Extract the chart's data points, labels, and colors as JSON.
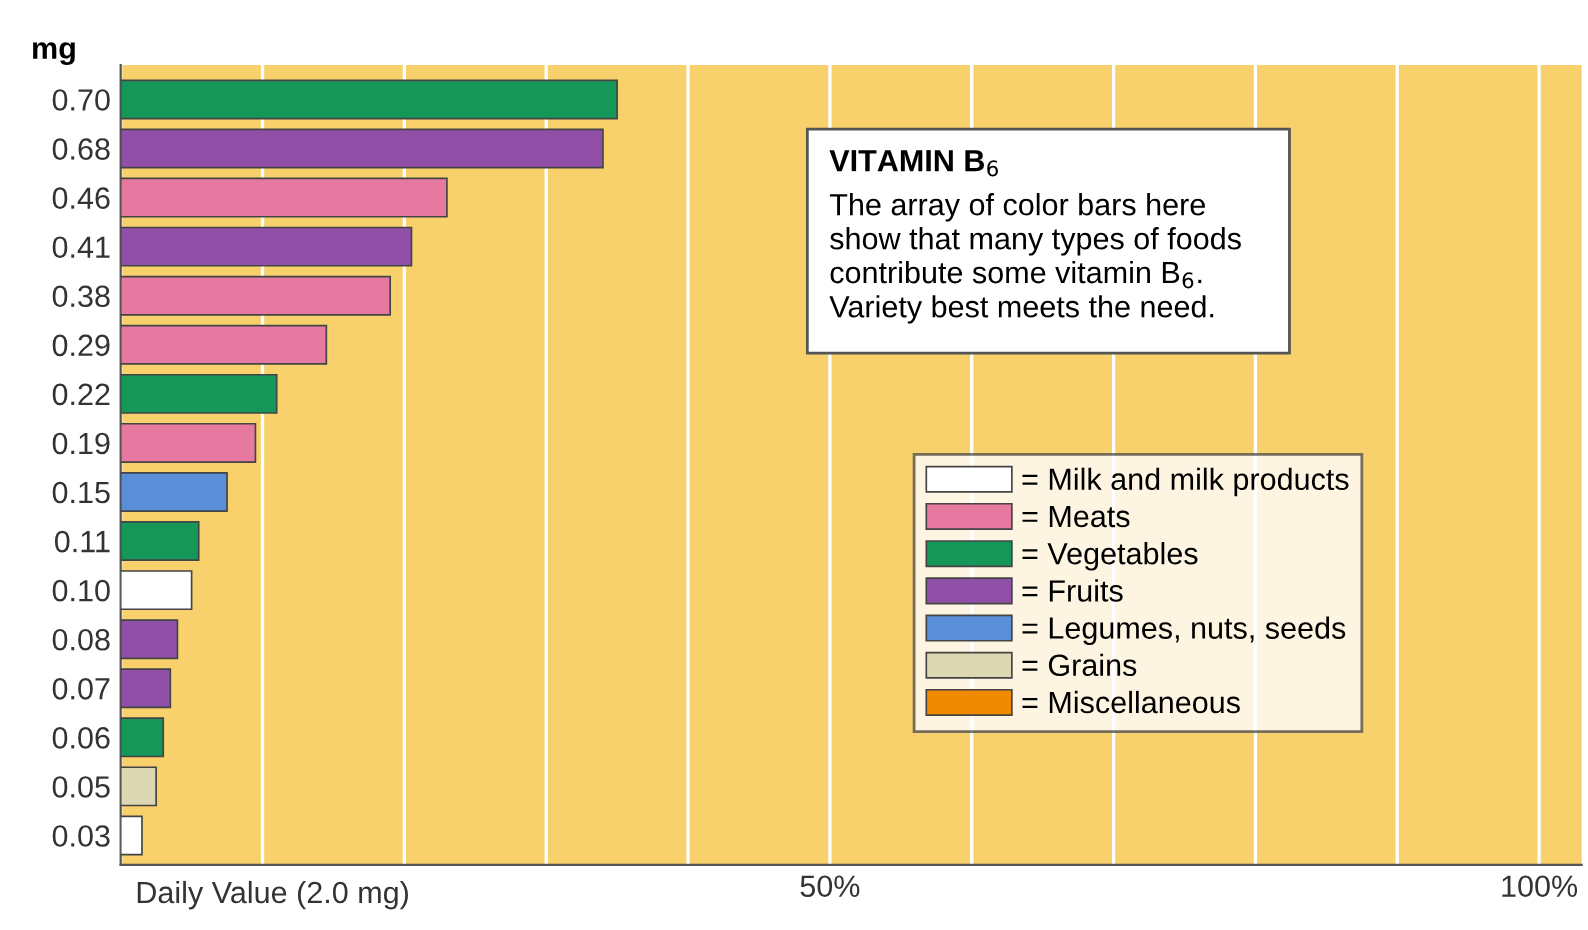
{
  "chart_data": {
    "type": "bar",
    "orientation": "horizontal",
    "ylabel": "mg",
    "xlabel": "Daily Value (2.0 mg)",
    "categories": [
      "0.70",
      "0.68",
      "0.46",
      "0.41",
      "0.38",
      "0.29",
      "0.22",
      "0.19",
      "0.15",
      "0.11",
      "0.10",
      "0.08",
      "0.07",
      "0.06",
      "0.05",
      "0.03"
    ],
    "series": [
      {
        "name": "= Milk and milk products",
        "color": "#ffffff",
        "values": [
          null,
          null,
          null,
          null,
          null,
          null,
          null,
          null,
          null,
          null,
          5,
          null,
          null,
          null,
          null,
          1.5
        ]
      },
      {
        "name": "= Meats",
        "color": "#e6799f",
        "values": [
          null,
          null,
          23,
          null,
          19,
          14.5,
          null,
          9.5,
          null,
          null,
          null,
          null,
          null,
          null,
          null,
          null
        ]
      },
      {
        "name": "= Vegetables",
        "color": "#15975a",
        "values": [
          35,
          null,
          null,
          null,
          null,
          null,
          11,
          null,
          null,
          5.5,
          null,
          null,
          null,
          3,
          null,
          null
        ]
      },
      {
        "name": "= Fruits",
        "color": "#9050a8",
        "values": [
          null,
          34,
          null,
          20.5,
          null,
          null,
          null,
          null,
          null,
          null,
          null,
          4,
          3.5,
          null,
          null,
          null
        ]
      },
      {
        "name": "= Legumes, nuts, seeds",
        "color": "#5b8ed8",
        "values": [
          null,
          null,
          null,
          null,
          null,
          null,
          null,
          null,
          7.5,
          null,
          null,
          null,
          null,
          null,
          null,
          null
        ]
      },
      {
        "name": "= Grains",
        "color": "#dcd8b4",
        "values": [
          null,
          null,
          null,
          null,
          null,
          null,
          null,
          null,
          null,
          null,
          null,
          null,
          null,
          null,
          2.5,
          null
        ]
      },
      {
        "name": "= Miscellaneous",
        "color": "#f08a00",
        "values": [
          null,
          null,
          null,
          null,
          null,
          null,
          null,
          null,
          null,
          null,
          null,
          null,
          null,
          null,
          null,
          null
        ]
      }
    ],
    "xlim": [
      0,
      103
    ],
    "xticks": [
      {
        "value": 0,
        "label": null
      },
      {
        "value": 10,
        "label": null
      },
      {
        "value": 20,
        "label": null
      },
      {
        "value": 30,
        "label": null
      },
      {
        "value": 40,
        "label": null
      },
      {
        "value": 50,
        "label": "50%"
      },
      {
        "value": 60,
        "label": null
      },
      {
        "value": 70,
        "label": null
      },
      {
        "value": 80,
        "label": null
      },
      {
        "value": 90,
        "label": null
      },
      {
        "value": 100,
        "label": "100%"
      }
    ],
    "grid": "x",
    "legend": "right",
    "annotations": [
      "VITAMIN B$_{6}$",
      "The array of color bars here\nshow that many types of foods\ncontribute some vitamin B$_{6}$.\nVariety best meets the need."
    ]
  }
}
